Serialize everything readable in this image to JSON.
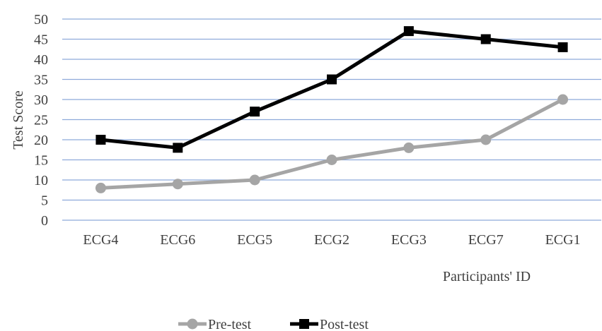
{
  "chart_data": {
    "type": "line",
    "categories": [
      "ECG4",
      "ECG6",
      "ECG5",
      "ECG2",
      "ECG3",
      "ECG7",
      "ECG1"
    ],
    "series": [
      {
        "name": "Pre-test",
        "values": [
          8,
          9,
          10,
          15,
          18,
          20,
          30
        ],
        "color": "#a5a5a5",
        "marker": "circle"
      },
      {
        "name": "Post-test",
        "values": [
          20,
          18,
          27,
          35,
          47,
          45,
          43
        ],
        "color": "#000000",
        "marker": "square"
      }
    ],
    "ylabel": "Test Score",
    "xlabel": "Participants' ID",
    "ylim": [
      0,
      50
    ],
    "yticks": [
      "0",
      "5",
      "10",
      "15",
      "20",
      "25",
      "30",
      "35",
      "40",
      "45",
      "50"
    ],
    "grid": true,
    "grid_color": "#8eaadb",
    "legend": "bottom"
  }
}
